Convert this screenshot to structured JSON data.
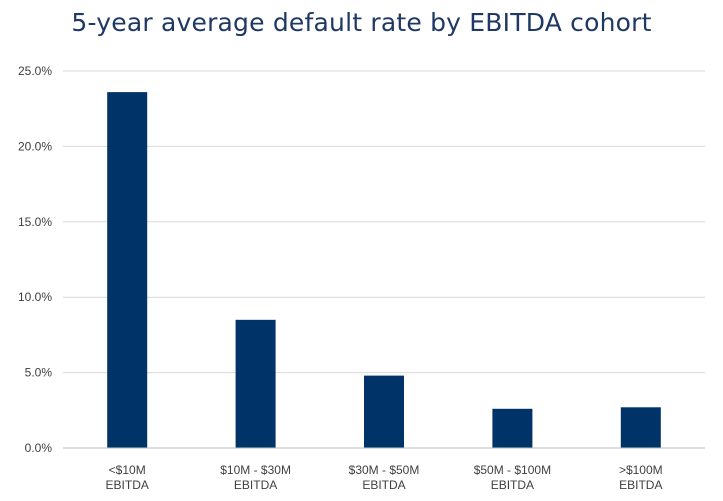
{
  "chart_data": {
    "type": "bar",
    "title": "5-year average default rate by EBITDA cohort",
    "xlabel": "",
    "ylabel": "",
    "categories": [
      [
        "<$10M",
        "EBITDA"
      ],
      [
        "$10M - $30M",
        "EBITDA"
      ],
      [
        "$30M - $50M",
        "EBITDA"
      ],
      [
        "$50M - $100M",
        "EBITDA"
      ],
      [
        ">$100M",
        "EBITDA"
      ]
    ],
    "values": [
      23.6,
      8.5,
      4.8,
      2.6,
      2.7
    ],
    "ylim": [
      0,
      25
    ],
    "yticks": [
      "0.0%",
      "5.0%",
      "10.0%",
      "15.0%",
      "20.0%",
      "25.0%"
    ],
    "grid": true,
    "legend": "none",
    "bar_color": "#003368",
    "gridline_color": "#d9d9d9",
    "title_color": "#1f3864"
  }
}
